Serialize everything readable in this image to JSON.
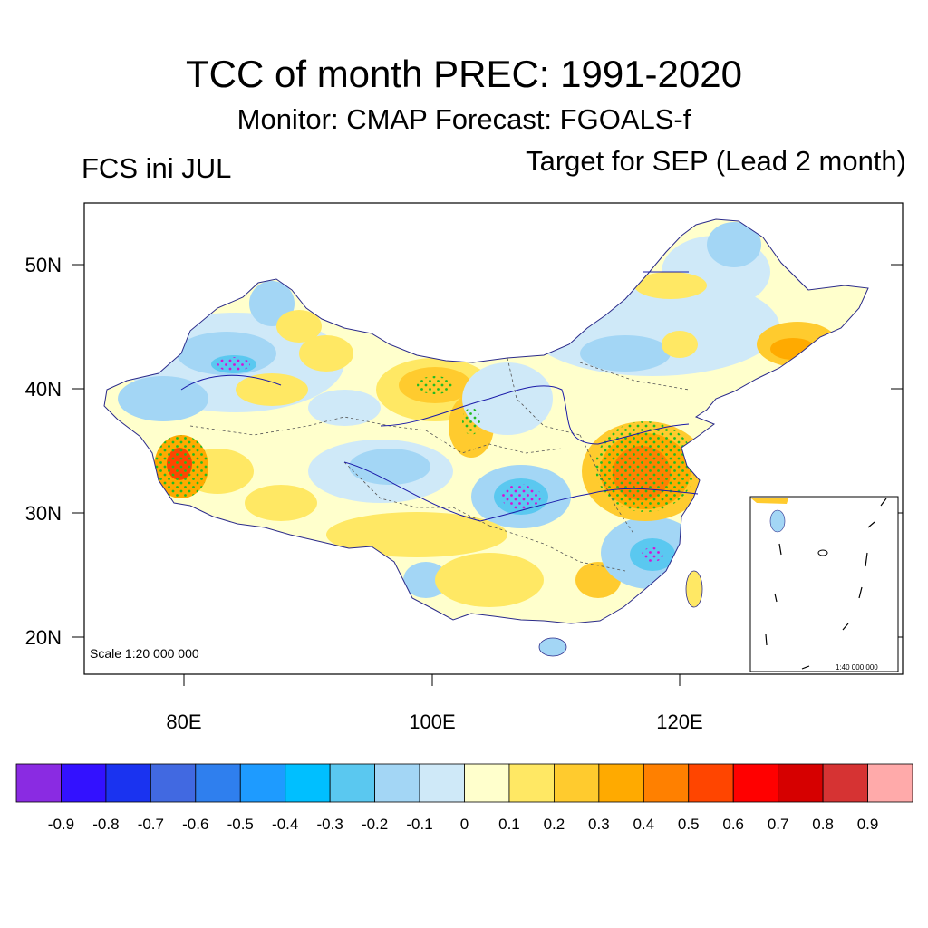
{
  "header": {
    "title": "TCC of month PREC: 1991-2020",
    "subtitle": "Monitor: CMAP   Forecast: FGOALS-f",
    "left_label": "FCS ini JUL",
    "right_label": "Target for SEP (Lead 2 month)"
  },
  "map": {
    "lat_labels": [
      "50N",
      "40N",
      "30N",
      "20N"
    ],
    "lon_labels": [
      "80E",
      "100E",
      "120E"
    ],
    "scale_text": "Scale 1:20 000 000",
    "inset_scale_text": "1:40 000 000",
    "border_color": "#1a1aa8",
    "significance_color": "#22bb22"
  },
  "colorbar": {
    "colors": [
      "#8a2be2",
      "#3311ff",
      "#1a33f0",
      "#4169e1",
      "#2f7fee",
      "#1e9bff",
      "#00bfff",
      "#5ac8f0",
      "#a3d6f5",
      "#cfe9f8",
      "#ffffcc",
      "#ffe864",
      "#ffcb2e",
      "#ffaa00",
      "#ff8000",
      "#ff4500",
      "#ff0000",
      "#d60000",
      "#d63333",
      "#ffaaaa"
    ],
    "labels": [
      "-0.9",
      "-0.8",
      "-0.7",
      "-0.6",
      "-0.5",
      "-0.4",
      "-0.3",
      "-0.2",
      "-0.1",
      "0",
      "0.1",
      "0.2",
      "0.3",
      "0.4",
      "0.5",
      "0.6",
      "0.7",
      "0.8",
      "0.9"
    ]
  }
}
